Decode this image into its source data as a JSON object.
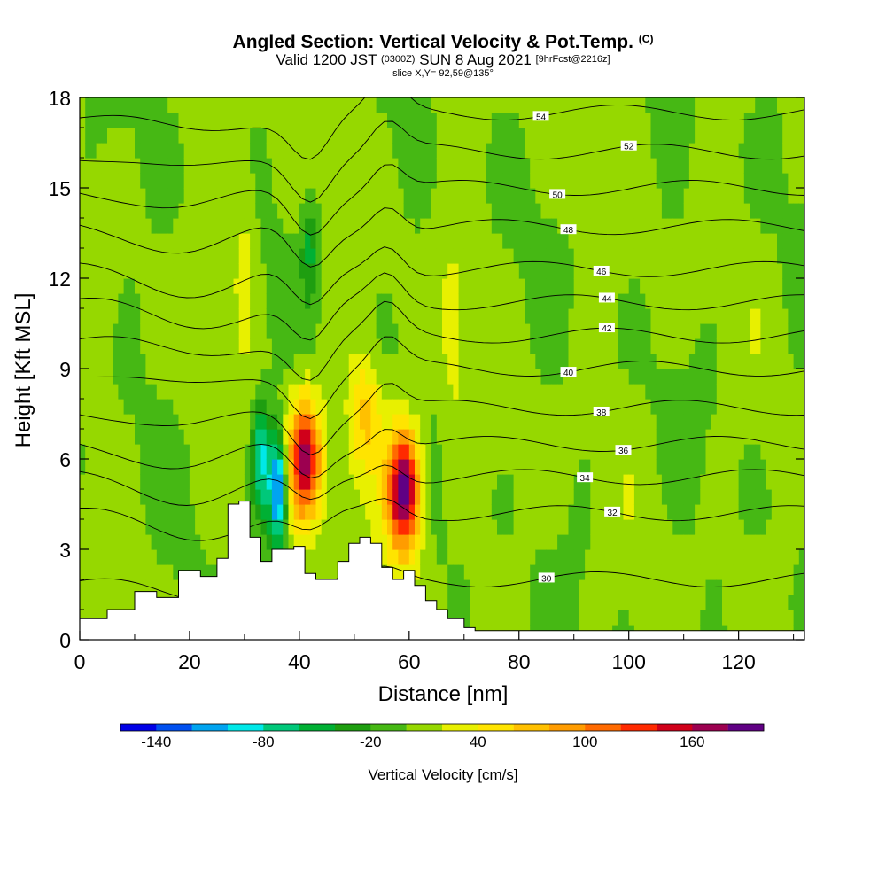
{
  "title": {
    "main": "Angled Section: Vertical Velocity & Pot.Temp.",
    "main_units": "(C)",
    "valid_prefix": "Valid 1200 JST",
    "valid_utc": "(0300Z)",
    "valid_date": "SUN 8 Aug 2021",
    "forecast": "[9hrFcst@2216z]",
    "slice": "slice X,Y= 92,59@135°"
  },
  "chart_data": {
    "type": "heatmap",
    "xlabel": "Distance [nm]",
    "ylabel": "Height [Kft MSL]",
    "xlim": [
      0,
      132
    ],
    "ylim": [
      0,
      18
    ],
    "x_ticks": [
      0,
      20,
      40,
      60,
      80,
      100,
      120
    ],
    "y_ticks": [
      0,
      3,
      6,
      9,
      12,
      15,
      18
    ],
    "colorbar": {
      "label": "Vertical Velocity [cm/s]",
      "min": -160,
      "max": 200,
      "step": 20,
      "tick_values": [
        -140,
        -80,
        -20,
        40,
        100,
        160
      ],
      "tick_labels": [
        "-140",
        "-80",
        "-20",
        "40",
        "100",
        "160"
      ],
      "colors": [
        "#0000e6",
        "#0050f0",
        "#00a4f0",
        "#00e8e8",
        "#00c87a",
        "#00b034",
        "#1e9e10",
        "#46b814",
        "#96d800",
        "#e8f000",
        "#ffe400",
        "#ffc000",
        "#ff9c00",
        "#ff6a00",
        "#ff2a00",
        "#d0001a",
        "#9c0050",
        "#600084"
      ]
    },
    "updrafts": [
      {
        "x": 41,
        "z": 6,
        "max_cms": 160
      },
      {
        "x": 59,
        "z": 5,
        "max_cms": 200
      },
      {
        "x": 52,
        "z": 7.5,
        "max_cms": 60
      }
    ],
    "downdrafts": [
      {
        "x": 36,
        "z": 5,
        "min_cms": -140
      },
      {
        "x": 33,
        "z": 6,
        "min_cms": -90
      },
      {
        "x": 42,
        "z": 13,
        "min_cms": -50
      }
    ],
    "theta_contours": [
      {
        "value": 30,
        "base_height": 2.0,
        "label_x": 85
      },
      {
        "value": 32,
        "base_height": 4.2,
        "label_x": 97
      },
      {
        "value": 34,
        "base_height": 5.4,
        "label_x": 92
      },
      {
        "value": 36,
        "base_height": 6.5,
        "label_x": 99
      },
      {
        "value": 38,
        "base_height": 7.7,
        "label_x": 95
      },
      {
        "value": 40,
        "base_height": 9.0,
        "label_x": 89
      },
      {
        "value": 42,
        "base_height": 10.1,
        "label_x": 96
      },
      {
        "value": 44,
        "base_height": 11.2,
        "label_x": 96
      },
      {
        "value": 46,
        "base_height": 12.3,
        "label_x": 95
      },
      {
        "value": 48,
        "base_height": 13.7,
        "label_x": 89
      },
      {
        "value": 50,
        "base_height": 15.0,
        "label_x": 87
      },
      {
        "value": 52,
        "base_height": 16.2,
        "label_x": 100
      },
      {
        "value": 54,
        "base_height": 17.5,
        "label_x": 84
      }
    ],
    "terrain": {
      "x": [
        0,
        5,
        10,
        14,
        18,
        22,
        25,
        27,
        29,
        31,
        33,
        35,
        37,
        39,
        41,
        43,
        45,
        47,
        49,
        51,
        53,
        55,
        57,
        59,
        61,
        63,
        65,
        67,
        70,
        72,
        132
      ],
      "z": [
        0.7,
        1.0,
        1.6,
        1.4,
        2.3,
        2.1,
        2.7,
        4.5,
        4.6,
        3.4,
        2.6,
        3.0,
        3.0,
        3.1,
        2.2,
        2.0,
        2.0,
        2.6,
        3.2,
        3.4,
        3.2,
        2.4,
        2.0,
        2.3,
        1.8,
        1.3,
        1.0,
        0.7,
        0.4,
        0.3,
        0.3
      ]
    }
  }
}
